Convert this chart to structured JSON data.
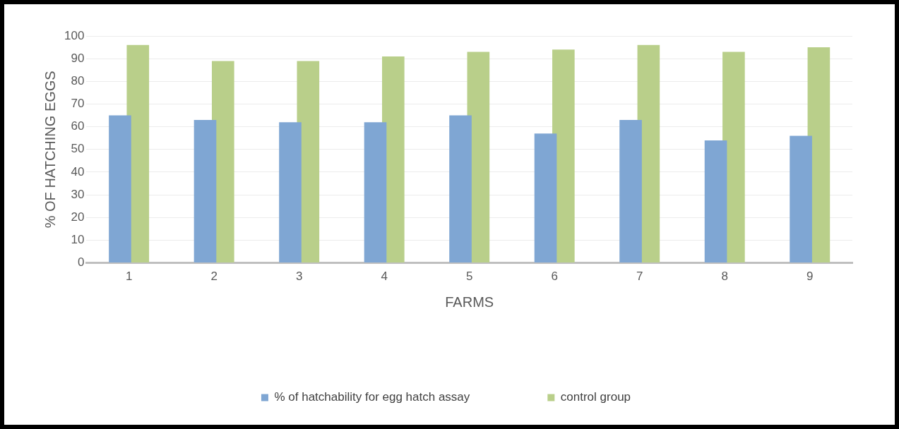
{
  "chart_data": {
    "type": "bar",
    "xlabel": "FARMS",
    "ylabel": "% OF HATCHING EGGS",
    "categories": [
      "1",
      "2",
      "3",
      "4",
      "5",
      "6",
      "7",
      "8",
      "9"
    ],
    "series": [
      {
        "name": "% of hatchability for egg hatch assay",
        "color": "#7fa6d3",
        "values": [
          65,
          63,
          62,
          62,
          65,
          57,
          63,
          54,
          56
        ]
      },
      {
        "name": "control group",
        "color": "#b9cf8a",
        "values": [
          96,
          89,
          89,
          91,
          93,
          94,
          96,
          93,
          95
        ]
      }
    ],
    "ylim": [
      0,
      100
    ],
    "yticks": [
      0,
      10,
      20,
      30,
      40,
      50,
      60,
      70,
      80,
      90,
      100
    ],
    "grid": "y",
    "legend": "bottom"
  }
}
